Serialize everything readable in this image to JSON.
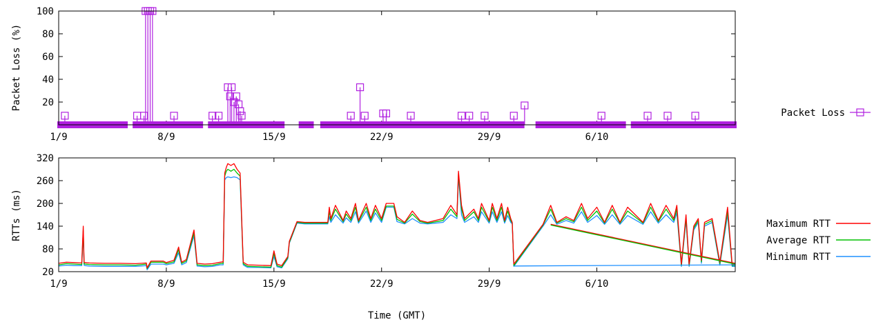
{
  "chart_data": [
    {
      "type": "scatter",
      "xlabel": "",
      "ylabel": "Packet Loss (%)",
      "xlim": [
        0,
        44
      ],
      "ylim": [
        0,
        100
      ],
      "xticks": [
        {
          "x": 0,
          "label": "1/9"
        },
        {
          "x": 7,
          "label": "8/9"
        },
        {
          "x": 14,
          "label": "15/9"
        },
        {
          "x": 21,
          "label": "22/9"
        },
        {
          "x": 28,
          "label": "29/9"
        },
        {
          "x": 35,
          "label": "6/10"
        }
      ],
      "yticks": [
        20,
        40,
        60,
        80,
        100
      ],
      "legend_position": "right",
      "series": [
        {
          "name": "Packet Loss",
          "color": "#b020e0",
          "marker": "square",
          "baseline_runs": [
            [
              0,
              4.4
            ],
            [
              4.9,
              9.3
            ],
            [
              9.8,
              14.6
            ],
            [
              15.7,
              16.5
            ],
            [
              17.1,
              30.2
            ],
            [
              31.1,
              36.8
            ],
            [
              37.3,
              44
            ]
          ],
          "spikes": [
            {
              "x": 0.4,
              "y": 8
            },
            {
              "x": 5.1,
              "y": 8
            },
            {
              "x": 5.55,
              "y": 8
            },
            {
              "x": 5.65,
              "y": 100
            },
            {
              "x": 5.8,
              "y": 100
            },
            {
              "x": 5.95,
              "y": 100
            },
            {
              "x": 6.1,
              "y": 100
            },
            {
              "x": 7.5,
              "y": 8
            },
            {
              "x": 10.0,
              "y": 8
            },
            {
              "x": 10.4,
              "y": 8
            },
            {
              "x": 11.0,
              "y": 33
            },
            {
              "x": 11.15,
              "y": 25
            },
            {
              "x": 11.25,
              "y": 33
            },
            {
              "x": 11.4,
              "y": 20
            },
            {
              "x": 11.55,
              "y": 25
            },
            {
              "x": 11.7,
              "y": 18
            },
            {
              "x": 11.8,
              "y": 12
            },
            {
              "x": 11.9,
              "y": 8
            },
            {
              "x": 19.0,
              "y": 8
            },
            {
              "x": 19.6,
              "y": 33
            },
            {
              "x": 19.9,
              "y": 8
            },
            {
              "x": 21.1,
              "y": 10
            },
            {
              "x": 21.3,
              "y": 10
            },
            {
              "x": 22.9,
              "y": 8
            },
            {
              "x": 26.2,
              "y": 8
            },
            {
              "x": 26.7,
              "y": 8
            },
            {
              "x": 27.7,
              "y": 8
            },
            {
              "x": 29.6,
              "y": 8
            },
            {
              "x": 30.3,
              "y": 17
            },
            {
              "x": 35.3,
              "y": 8
            },
            {
              "x": 38.3,
              "y": 8
            },
            {
              "x": 39.6,
              "y": 8
            },
            {
              "x": 41.4,
              "y": 8
            }
          ]
        }
      ]
    },
    {
      "type": "line",
      "xlabel": "Time (GMT)",
      "ylabel": "RTTs (ms)",
      "xlim": [
        0,
        44
      ],
      "ylim": [
        20,
        320
      ],
      "xticks": [
        {
          "x": 0,
          "label": "1/9"
        },
        {
          "x": 7,
          "label": "8/9"
        },
        {
          "x": 14,
          "label": "15/9"
        },
        {
          "x": 21,
          "label": "22/9"
        },
        {
          "x": 28,
          "label": "29/9"
        },
        {
          "x": 35,
          "label": "6/10"
        }
      ],
      "yticks": [
        20,
        80,
        140,
        200,
        260,
        320
      ],
      "legend_position": "right",
      "series": [
        {
          "name": "Maximum RTT",
          "color": "#ff0000",
          "x": [
            0,
            0.5,
            1.0,
            1.5,
            1.6,
            1.65,
            1.7,
            2.0,
            3.0,
            4.0,
            5.0,
            5.7,
            5.75,
            6.0,
            6.8,
            7.0,
            7.5,
            7.8,
            8.0,
            8.3,
            8.8,
            9.0,
            9.5,
            10.0,
            10.5,
            10.7,
            10.8,
            10.9,
            11.0,
            11.2,
            11.4,
            11.6,
            11.8,
            12.0,
            12.2,
            12.3,
            13.0,
            13.8,
            14.0,
            14.2,
            14.5,
            14.9,
            15.0,
            15.5,
            16.0,
            16.5,
            17.0,
            17.5,
            17.6,
            17.7,
            18.0,
            18.5,
            18.7,
            19.0,
            19.3,
            19.5,
            20.0,
            20.3,
            20.6,
            21.0,
            21.3,
            21.5,
            21.8,
            22.0,
            22.5,
            23.0,
            23.5,
            24.0,
            25.0,
            25.5,
            25.9,
            26.0,
            26.2,
            26.4,
            27.0,
            27.3,
            27.5,
            28.0,
            28.2,
            28.5,
            28.8,
            29.0,
            29.2,
            29.4,
            29.5,
            29.6,
            31.5,
            32.0,
            32.4,
            33.0,
            33.5,
            34.0,
            34.4,
            35.0,
            35.5,
            36.0,
            36.5,
            37.0,
            38.0,
            38.5,
            39.0,
            39.5,
            40.0,
            40.2,
            40.5,
            40.8,
            41.0,
            41.3,
            41.6,
            41.8,
            42.0,
            42.5,
            43.0,
            43.5,
            43.8,
            44
          ],
          "y": [
            42,
            45,
            44,
            43,
            140,
            45,
            44,
            43,
            42,
            42,
            41,
            43,
            30,
            48,
            48,
            44,
            50,
            85,
            45,
            52,
            130,
            42,
            40,
            41,
            45,
            46,
            280,
            295,
            305,
            300,
            305,
            290,
            280,
            45,
            40,
            38,
            37,
            36,
            75,
            40,
            36,
            60,
            100,
            152,
            150,
            150,
            150,
            150,
            190,
            160,
            195,
            155,
            180,
            160,
            200,
            155,
            200,
            160,
            195,
            160,
            200,
            200,
            200,
            165,
            150,
            180,
            155,
            150,
            160,
            195,
            170,
            285,
            195,
            160,
            185,
            160,
            200,
            155,
            200,
            160,
            200,
            155,
            190,
            160,
            150,
            40,
            145,
            195,
            150,
            165,
            155,
            200,
            160,
            190,
            150,
            195,
            150,
            190,
            150,
            200,
            155,
            195,
            160,
            195,
            40,
            170,
            40,
            140,
            160,
            50,
            150,
            160,
            45,
            190,
            40,
            40
          ]
        },
        {
          "name": "Average RTT",
          "color": "#00c000",
          "x": [
            0,
            0.5,
            1.0,
            1.5,
            1.6,
            1.65,
            1.7,
            2.0,
            3.0,
            4.0,
            5.0,
            5.7,
            5.75,
            6.0,
            6.8,
            7.0,
            7.5,
            7.8,
            8.0,
            8.3,
            8.8,
            9.0,
            9.5,
            10.0,
            10.5,
            10.7,
            10.8,
            10.9,
            11.0,
            11.2,
            11.4,
            11.6,
            11.8,
            12.0,
            12.2,
            12.3,
            13.0,
            13.8,
            14.0,
            14.2,
            14.5,
            14.9,
            15.0,
            15.5,
            16.0,
            16.5,
            17.0,
            17.5,
            17.6,
            17.7,
            18.0,
            18.5,
            18.7,
            19.0,
            19.3,
            19.5,
            20.0,
            20.3,
            20.6,
            21.0,
            21.3,
            21.5,
            21.8,
            22.0,
            22.5,
            23.0,
            23.5,
            24.0,
            25.0,
            25.5,
            25.9,
            26.0,
            26.2,
            26.4,
            27.0,
            27.3,
            27.5,
            28.0,
            28.2,
            28.5,
            28.8,
            29.0,
            29.2,
            29.4,
            29.5,
            29.6,
            31.5,
            32.0,
            32.4,
            33.0,
            33.5,
            34.0,
            34.4,
            35.0,
            35.5,
            36.0,
            36.5,
            37.0,
            38.0,
            38.5,
            39.0,
            39.5,
            40.0,
            40.2,
            40.5,
            40.8,
            41.0,
            41.3,
            41.6,
            41.8,
            42.0,
            42.5,
            43.0,
            43.5,
            43.8,
            44
          ],
          "y": [
            38,
            41,
            40,
            39,
            130,
            41,
            40,
            39,
            38,
            38,
            37,
            40,
            28,
            45,
            45,
            41,
            46,
            78,
            42,
            48,
            122,
            38,
            36,
            37,
            41,
            42,
            272,
            285,
            290,
            285,
            290,
            280,
            272,
            41,
            36,
            34,
            33,
            32,
            68,
            36,
            32,
            57,
            97,
            150,
            148,
            148,
            148,
            148,
            180,
            155,
            185,
            152,
            172,
            155,
            190,
            152,
            190,
            155,
            185,
            155,
            193,
            193,
            193,
            158,
            148,
            172,
            152,
            148,
            155,
            185,
            165,
            278,
            185,
            155,
            178,
            155,
            190,
            152,
            190,
            155,
            190,
            152,
            180,
            155,
            148,
            36,
            143,
            185,
            148,
            160,
            152,
            190,
            155,
            180,
            148,
            185,
            148,
            180,
            148,
            190,
            152,
            185,
            155,
            185,
            36,
            162,
            36,
            135,
            155,
            46,
            145,
            155,
            41,
            180,
            36,
            37
          ]
        },
        {
          "name": "Minimum RTT",
          "color": "#1e90ff",
          "x": [
            0,
            0.5,
            1.0,
            1.5,
            1.6,
            1.65,
            1.7,
            2.0,
            3.0,
            4.0,
            5.0,
            5.7,
            5.75,
            6.0,
            6.8,
            7.0,
            7.5,
            7.8,
            8.0,
            8.3,
            8.8,
            9.0,
            9.5,
            10.0,
            10.5,
            10.7,
            10.8,
            10.9,
            11.0,
            11.2,
            11.4,
            11.6,
            11.8,
            12.0,
            12.2,
            12.3,
            13.0,
            13.8,
            14.0,
            14.2,
            14.5,
            14.9,
            15.0,
            15.5,
            16.0,
            16.5,
            17.0,
            17.5,
            17.6,
            17.7,
            18.0,
            18.5,
            18.7,
            19.0,
            19.3,
            19.5,
            20.0,
            20.3,
            20.6,
            21.0,
            21.3,
            21.5,
            21.8,
            22.0,
            22.5,
            23.0,
            23.5,
            24.0,
            25.0,
            25.5,
            25.9,
            26.0,
            26.2,
            26.4,
            27.0,
            27.3,
            27.5,
            28.0,
            28.2,
            28.5,
            28.8,
            29.0,
            29.2,
            29.4,
            29.5,
            29.6,
            31.5,
            32.0,
            32.4,
            33.0,
            33.5,
            34.0,
            34.4,
            35.0,
            35.5,
            36.0,
            36.5,
            37.0,
            38.0,
            38.5,
            39.0,
            39.5,
            40.0,
            40.2,
            40.5,
            40.8,
            41.0,
            41.3,
            41.6,
            41.8,
            42.0,
            42.5,
            43.0,
            43.5,
            43.8,
            44
          ],
          "y": [
            35,
            37,
            36,
            36,
            120,
            37,
            36,
            35,
            34,
            34,
            34,
            36,
            25,
            40,
            40,
            38,
            42,
            70,
            38,
            44,
            115,
            35,
            33,
            34,
            38,
            38,
            262,
            268,
            270,
            268,
            270,
            268,
            262,
            38,
            33,
            31,
            31,
            30,
            60,
            33,
            30,
            54,
            95,
            148,
            146,
            146,
            146,
            146,
            165,
            150,
            170,
            148,
            162,
            150,
            178,
            148,
            180,
            150,
            175,
            150,
            190,
            190,
            190,
            152,
            146,
            160,
            148,
            146,
            150,
            170,
            160,
            270,
            170,
            150,
            165,
            150,
            178,
            148,
            178,
            150,
            178,
            148,
            168,
            150,
            146,
            34,
            140,
            170,
            145,
            155,
            148,
            178,
            150,
            168,
            145,
            170,
            145,
            168,
            145,
            178,
            148,
            170,
            150,
            175,
            34,
            155,
            34,
            130,
            150,
            42,
            140,
            150,
            37,
            170,
            34,
            34
          ]
        }
      ],
      "extra_segments": [
        {
          "series": "Minimum RTT",
          "x": [
            29.6,
            44
          ],
          "y": [
            35,
            38
          ]
        },
        {
          "series": "Maximum RTT",
          "x": [
            32.0,
            44
          ],
          "y": [
            145,
            42
          ]
        },
        {
          "series": "Average RTT",
          "x": [
            32.0,
            44
          ],
          "y": [
            143,
            40
          ]
        }
      ]
    }
  ]
}
